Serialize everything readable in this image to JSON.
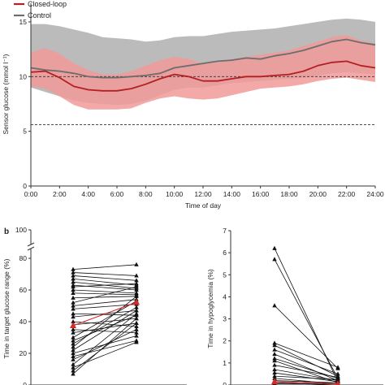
{
  "panel_b_label": "b",
  "chart_data": [
    {
      "type": "area",
      "legend": [
        "Closed-loop",
        "Control"
      ],
      "legend_placement": "top-left",
      "colors": {
        "closed_loop": "#b51e22",
        "closed_loop_band": "#f09a99",
        "control": "#6d6d6d",
        "control_band": "#b4b4b4"
      },
      "xlabel": "Time of day",
      "ylabel": "Sensor glucose (mmol l⁻¹)",
      "xlim": [
        0,
        24
      ],
      "ylim": [
        0,
        17
      ],
      "x_ticks": [
        "0:00",
        "2:00",
        "4:00",
        "6:00",
        "8:00",
        "10:00",
        "12:00",
        "14:00",
        "16:00",
        "18:00",
        "20:00",
        "22:00",
        "24:00"
      ],
      "y_ticks": [
        "0",
        "5",
        "10",
        "15"
      ],
      "reference_lines": [
        10.0,
        5.6
      ],
      "x": [
        0,
        1,
        2,
        3,
        4,
        5,
        6,
        7,
        8,
        9,
        10,
        11,
        12,
        13,
        14,
        15,
        16,
        17,
        18,
        19,
        20,
        21,
        22,
        23,
        24
      ],
      "series": [
        {
          "name": "Closed-loop",
          "median": [
            10.4,
            10.5,
            9.9,
            9.1,
            8.8,
            8.7,
            8.7,
            8.9,
            9.3,
            9.8,
            10.2,
            10.0,
            9.6,
            9.6,
            9.8,
            10.0,
            10.0,
            10.1,
            10.2,
            10.5,
            11.0,
            11.3,
            11.4,
            11.0,
            10.8
          ],
          "q1": [
            9.1,
            8.9,
            8.2,
            7.4,
            7.0,
            7.0,
            7.0,
            7.1,
            7.6,
            8.0,
            8.2,
            8.0,
            7.9,
            8.0,
            8.3,
            8.6,
            8.9,
            9.0,
            9.1,
            9.3,
            9.6,
            9.8,
            9.9,
            9.7,
            9.5
          ],
          "q3": [
            12.2,
            12.6,
            12.1,
            11.2,
            10.6,
            10.2,
            10.2,
            10.5,
            11.0,
            11.5,
            11.8,
            11.6,
            11.2,
            11.3,
            11.6,
            11.8,
            12.0,
            12.2,
            12.4,
            12.8,
            13.2,
            13.6,
            13.8,
            13.3,
            13.0
          ]
        },
        {
          "name": "Control",
          "median": [
            10.8,
            10.6,
            10.5,
            10.3,
            10.0,
            9.9,
            9.9,
            10.0,
            10.1,
            10.3,
            10.8,
            11.0,
            11.2,
            11.4,
            11.5,
            11.7,
            11.6,
            11.9,
            12.1,
            12.4,
            12.8,
            13.2,
            13.4,
            13.1,
            12.9
          ],
          "q1": [
            9.0,
            8.6,
            8.2,
            7.8,
            7.6,
            7.5,
            7.4,
            7.5,
            7.8,
            8.3,
            8.8,
            9.0,
            9.0,
            9.2,
            9.4,
            9.5,
            9.6,
            9.7,
            9.8,
            9.9,
            10.1,
            10.3,
            10.4,
            10.3,
            10.2
          ],
          "q3": [
            14.8,
            14.8,
            14.6,
            14.3,
            14.0,
            13.6,
            13.5,
            13.4,
            13.2,
            13.3,
            13.6,
            13.7,
            13.7,
            13.9,
            14.1,
            14.2,
            14.3,
            14.4,
            14.6,
            14.8,
            15.0,
            15.2,
            15.3,
            15.2,
            15.0
          ]
        }
      ]
    },
    {
      "type": "line",
      "ylabel": "Time in target glucose range (%)",
      "ylim": [
        0,
        100
      ],
      "y_ticks": [
        "0",
        "20",
        "40",
        "60",
        "80",
        "100"
      ],
      "axis_break": [
        80,
        100
      ],
      "highlight_color": "#d42a2a",
      "pairs": [
        [
          73,
          76
        ],
        [
          71,
          69
        ],
        [
          69,
          66
        ],
        [
          67,
          63
        ],
        [
          65,
          61
        ],
        [
          63,
          60
        ],
        [
          62,
          64
        ],
        [
          60,
          58
        ],
        [
          58,
          57
        ],
        [
          55,
          56
        ],
        [
          52,
          62
        ],
        [
          50,
          54
        ],
        [
          48,
          51
        ],
        [
          45,
          44
        ],
        [
          43,
          47
        ],
        [
          40,
          37
        ],
        [
          38,
          42
        ],
        [
          35,
          33
        ],
        [
          33,
          39
        ],
        [
          30,
          53
        ],
        [
          28,
          44
        ],
        [
          26,
          49
        ],
        [
          24,
          56
        ],
        [
          22,
          47
        ],
        [
          20,
          31
        ],
        [
          18,
          28
        ],
        [
          16,
          35
        ],
        [
          13,
          45
        ],
        [
          11,
          27
        ],
        [
          9,
          39
        ],
        [
          7,
          42
        ]
      ],
      "mean_pair": [
        37.5,
        52.2
      ]
    },
    {
      "type": "line",
      "ylabel": "Time in hypoglycemia (%)",
      "ylim": [
        0,
        7
      ],
      "y_ticks": [
        "0",
        "1",
        "2",
        "3",
        "4",
        "5",
        "6",
        "7"
      ],
      "highlight_color": "#d42a2a",
      "pairs": [
        [
          6.2,
          0.15
        ],
        [
          5.7,
          0.3
        ],
        [
          3.6,
          0.75
        ],
        [
          1.9,
          0.8
        ],
        [
          1.8,
          0.4
        ],
        [
          1.6,
          0.5
        ],
        [
          1.4,
          0.2
        ],
        [
          1.2,
          0.3
        ],
        [
          1.1,
          0.1
        ],
        [
          0.9,
          0.35
        ],
        [
          0.7,
          0.2
        ],
        [
          0.55,
          0.15
        ],
        [
          0.4,
          0.25
        ],
        [
          0.3,
          0.05
        ],
        [
          0.2,
          0.1
        ],
        [
          0.15,
          0.05
        ],
        [
          0.1,
          0.0
        ],
        [
          0.05,
          0.05
        ]
      ],
      "mean_pair": [
        0.15,
        0.05
      ]
    }
  ]
}
